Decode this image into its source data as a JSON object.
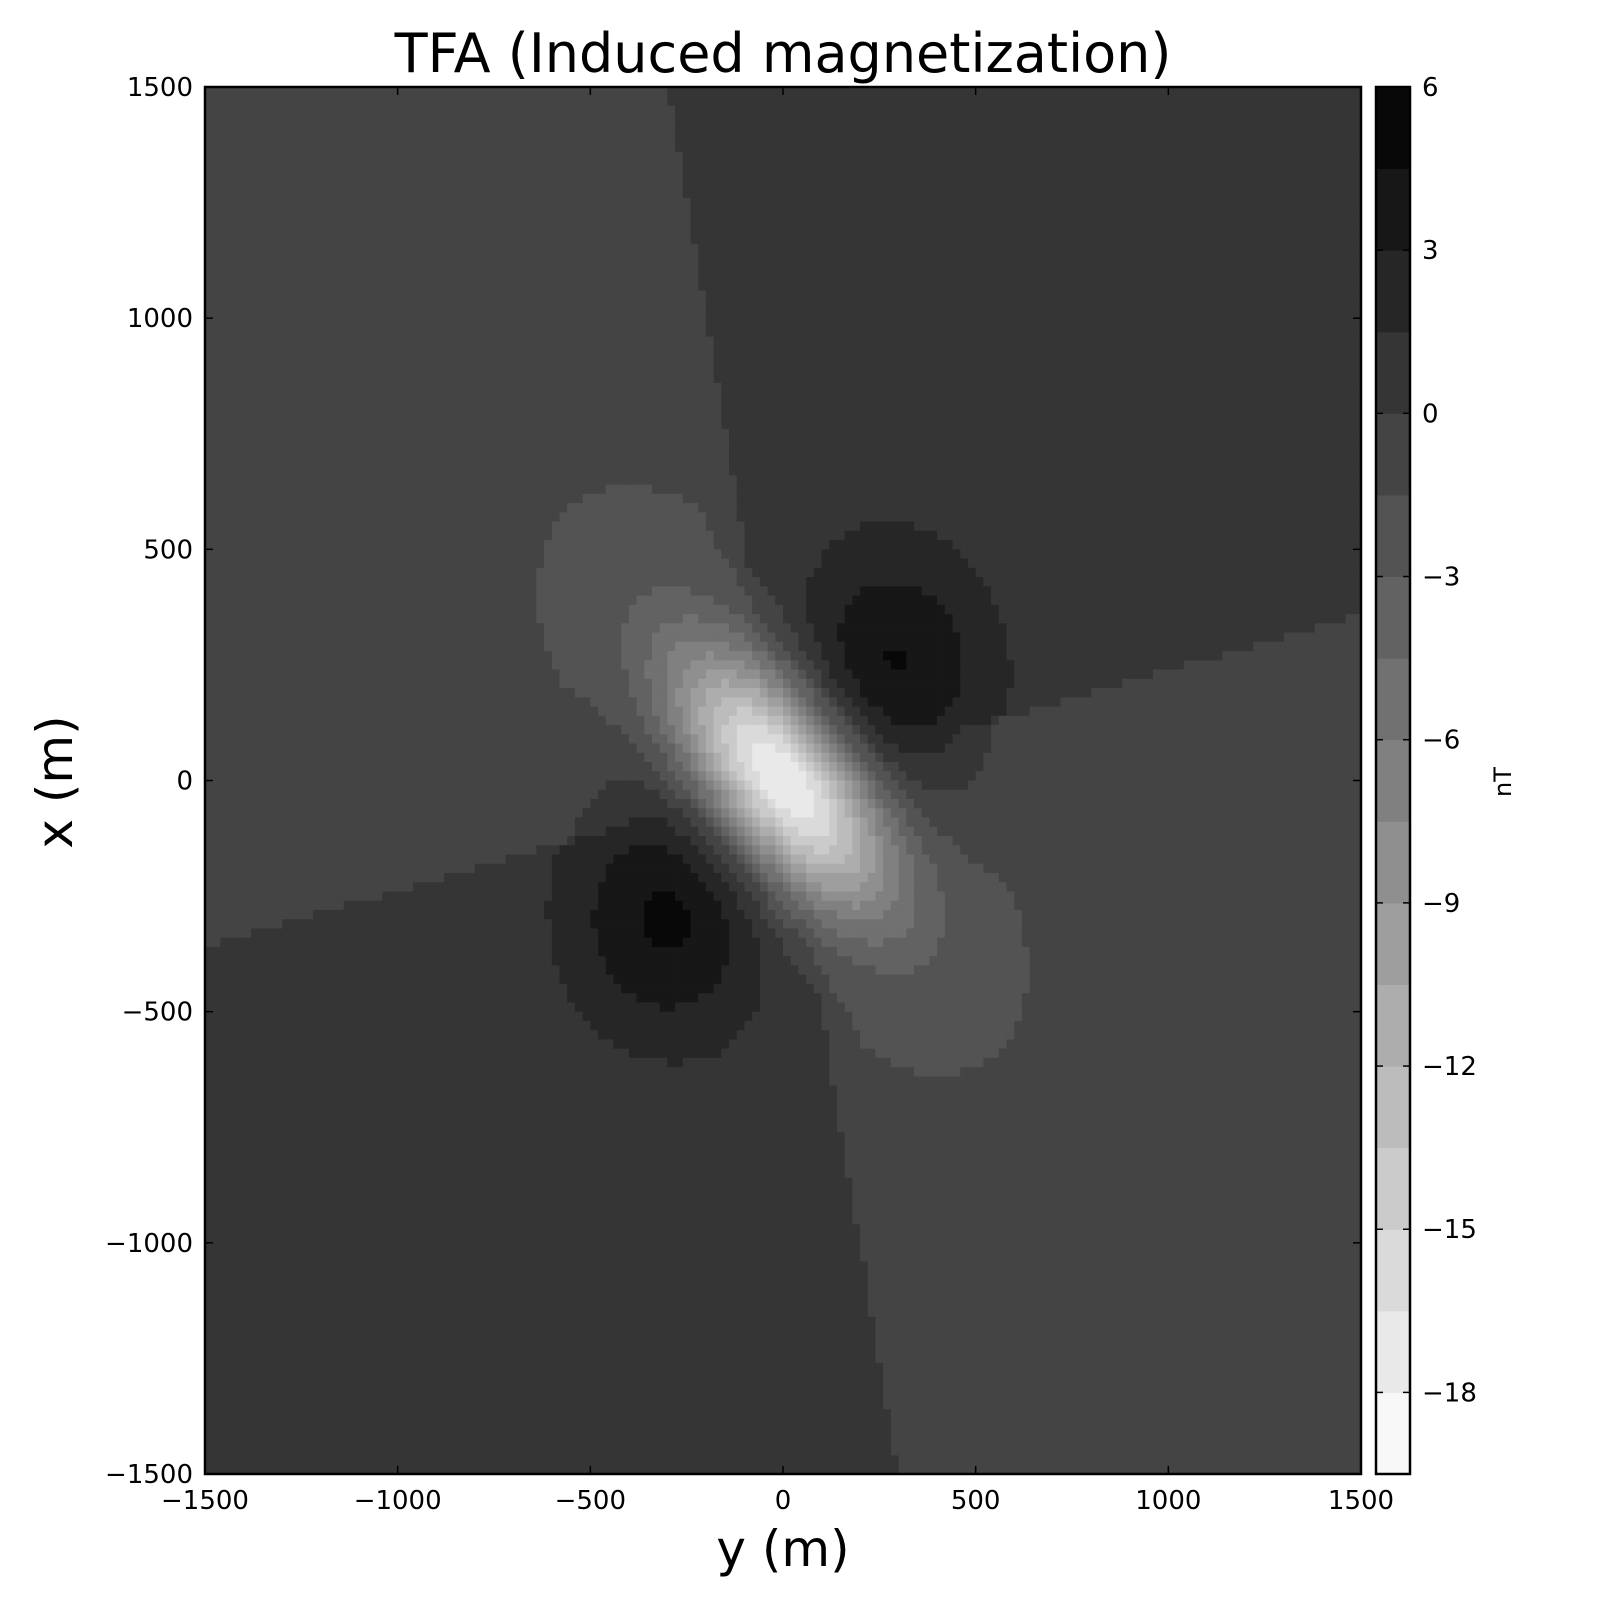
{
  "chart_data": {
    "type": "heatmap",
    "subtype": "filled-contour",
    "title": "TFA (Induced magnetization)",
    "xlabel": "y (m)",
    "ylabel": "x (m)",
    "xlim": [
      -1500,
      1500
    ],
    "ylim": [
      -1500,
      1500
    ],
    "x_ticks": [
      -1500,
      -1000,
      -500,
      0,
      500,
      1000,
      1500
    ],
    "y_ticks": [
      -1500,
      -1000,
      -500,
      0,
      500,
      1000,
      1500
    ],
    "x_tick_labels": [
      "−1500",
      "−1000",
      "−500",
      "0",
      "500",
      "1000",
      "1500"
    ],
    "y_tick_labels": [
      "−1500",
      "−1000",
      "−500",
      "0",
      "500",
      "1000",
      "1500"
    ],
    "colormap": "gray",
    "grid": false,
    "colorbar": {
      "label": "nT",
      "range": [
        -19.5,
        6
      ],
      "level_step": 1.5,
      "ticks": [
        6,
        3,
        0,
        -3,
        -6,
        -9,
        -12,
        -15,
        -18
      ],
      "tick_labels": [
        "6",
        "3",
        "0",
        "−3",
        "−6",
        "−9",
        "−12",
        "−15",
        "−18"
      ]
    },
    "field_description": "Dipole anomaly: strong negative minimum (about -19.5 nT) at y=0, x=0; positive lobes (about +4.5 nT) near y=260, x=230 and y=-280, x=-280; background near -0.5 nT split by nodal lines.",
    "features": [
      {
        "kind": "minimum",
        "y": 0,
        "x": 0,
        "value": -19.5
      },
      {
        "kind": "maximum",
        "y": 260,
        "x": 230,
        "value": 4.5
      },
      {
        "kind": "maximum",
        "y": -280,
        "x": -280,
        "value": 4.5
      }
    ]
  }
}
